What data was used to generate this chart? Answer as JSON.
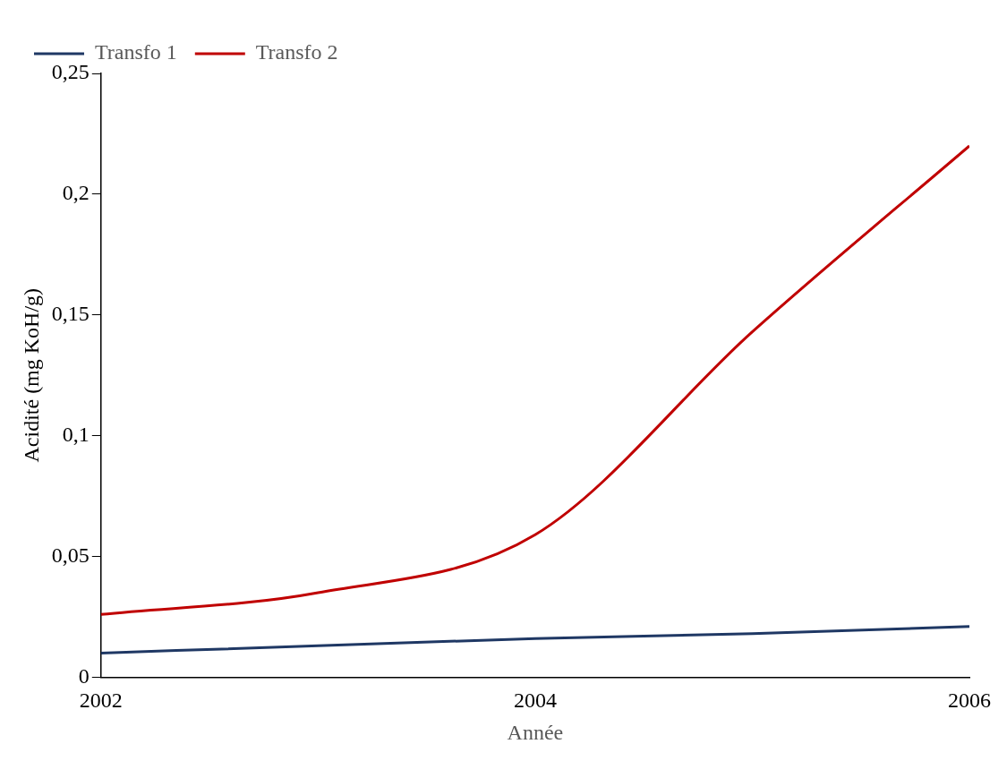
{
  "chart_data": {
    "type": "line",
    "xlabel": "Année",
    "ylabel": "Acidité (mg KoH/g)",
    "x": [
      2002,
      2003,
      2004,
      2005,
      2006
    ],
    "series": [
      {
        "name": "Transfo 1",
        "color": "#1f3864",
        "values": [
          0.01,
          0.013,
          0.016,
          0.018,
          0.021
        ]
      },
      {
        "name": "Transfo 2",
        "color": "#c00000",
        "values": [
          0.026,
          0.035,
          0.059,
          0.143,
          0.22
        ]
      }
    ],
    "xlim": [
      2002,
      2006
    ],
    "xticks": [
      2002,
      2004,
      2006
    ],
    "ylim": [
      0,
      0.25
    ],
    "yticks": [
      0,
      {
        "value": 0.05,
        "label": "0,05"
      },
      {
        "value": 0.1,
        "label": "0,1"
      },
      {
        "value": 0.15,
        "label": "0,15"
      },
      {
        "value": 0.2,
        "label": "0,2"
      },
      {
        "value": 0.25,
        "label": "0,25"
      }
    ],
    "grid": false,
    "legend": "top left",
    "marker": "none",
    "line_style": "solid"
  }
}
